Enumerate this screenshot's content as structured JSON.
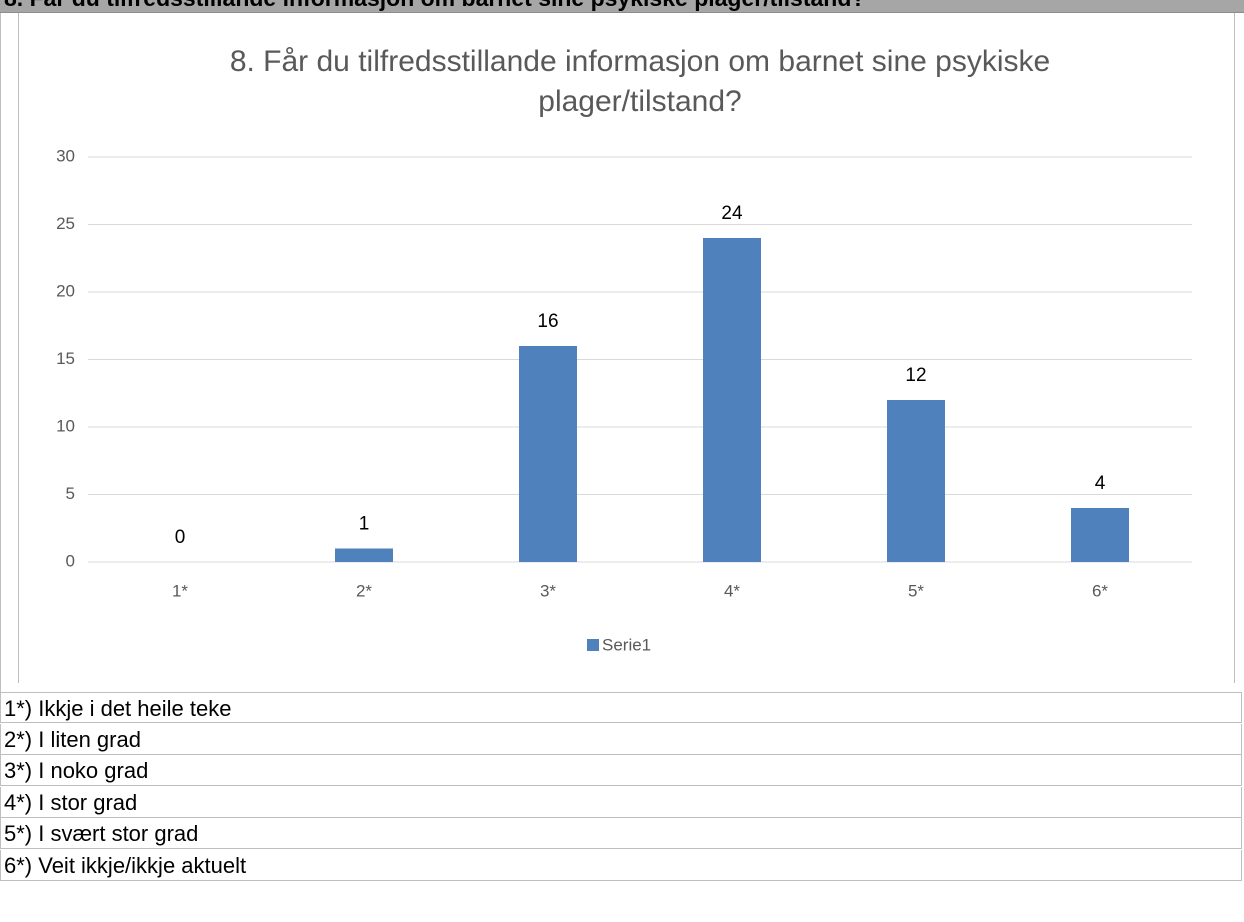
{
  "header": {
    "title": "8. Får du tilfredsstillande informasjon om barnet sine psykiske plager/tilstand?"
  },
  "chart_data": {
    "type": "bar",
    "title": "8. Får du tilfredsstillande informasjon om barnet sine psykiske plager/tilstand?",
    "categories": [
      "1*",
      "2*",
      "3*",
      "4*",
      "5*",
      "6*"
    ],
    "series": [
      {
        "name": "Serie1",
        "color": "#4f81bd",
        "values": [
          0,
          1,
          16,
          24,
          12,
          4
        ]
      }
    ],
    "ylim": [
      0,
      30
    ],
    "yticks": [
      0,
      5,
      10,
      15,
      20,
      25,
      30
    ],
    "grid": true,
    "legend": "bottom",
    "data_labels": true
  },
  "notes": [
    "1*) Ikkje i det heile teke",
    "2*) I liten grad",
    "3*) I noko grad",
    "4*) I stor grad",
    "5*) I svært stor grad",
    "6*) Veit ikkje/ikkje aktuelt"
  ]
}
